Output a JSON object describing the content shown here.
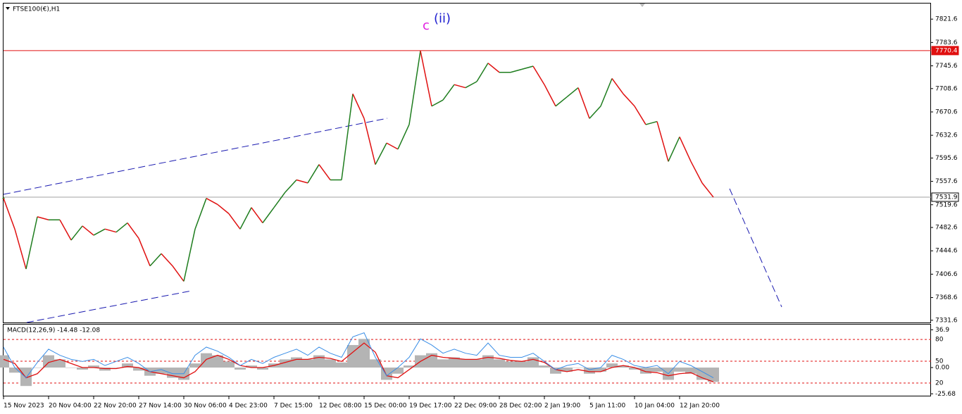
{
  "chart_data": [
    {
      "type": "line",
      "title": "FTSE100(€),H1",
      "categories": [
        "15 Nov 2023",
        null,
        null,
        null,
        "20 Nov 04:00",
        null,
        null,
        null,
        "22 Nov 20:00",
        null,
        null,
        null,
        "27 Nov 14:00",
        null,
        null,
        null,
        "30 Nov 06:00",
        null,
        null,
        null,
        "4 Dec 23:00",
        null,
        null,
        null,
        "7 Dec 15:00",
        null,
        null,
        null,
        "12 Dec 08:00",
        null,
        null,
        null,
        "15 Dec 00:00",
        null,
        null,
        null,
        "19 Dec 17:00",
        null,
        null,
        null,
        "22 Dec 09:00",
        null,
        null,
        null,
        "28 Dec 02:00",
        null,
        null,
        null,
        "2 Jan 19:00",
        null,
        null,
        null,
        "5 Jan 11:00",
        null,
        null,
        null,
        "10 Jan 04:00",
        null,
        null,
        null,
        "12 Jan 20:00",
        null,
        null,
        null
      ],
      "series": [
        {
          "up_color": "#1e7d1e",
          "down_color": "#e01010",
          "values": [
            7530,
            7480,
            7415,
            7500,
            7495,
            7495,
            7462,
            7485,
            7470,
            7480,
            7475,
            7490,
            7465,
            7420,
            7440,
            7420,
            7395,
            7480,
            7530,
            7520,
            7505,
            7480,
            7515,
            7490,
            7515,
            7540,
            7560,
            7555,
            7585,
            7560,
            7560,
            7700,
            7660,
            7585,
            7620,
            7610,
            7650,
            7770,
            7680,
            7690,
            7715,
            7710,
            7720,
            7750,
            7735,
            7735,
            7740,
            7745,
            7715,
            7680,
            7695,
            7710,
            7660,
            7680,
            7725,
            7700,
            7680,
            7650,
            7655,
            7590,
            7630,
            7590,
            7555,
            7531.9
          ]
        }
      ],
      "ylim": [
        7328,
        7847
      ],
      "yticks": [
        7821.6,
        7783.6,
        7745.6,
        7708.6,
        7670.6,
        7632.6,
        7595.6,
        7557.6,
        7519.6,
        7482.6,
        7444.6,
        7406.6,
        7368.6,
        7331.6
      ],
      "levels": [
        {
          "value": 7770.4,
          "color": "#e01010"
        },
        {
          "value": 7531.9,
          "color": "#a0a0a0"
        }
      ],
      "annotations": [
        {
          "text": "c",
          "color": "#e020e0"
        },
        {
          "text": "(ii)",
          "color": "#2020d0"
        }
      ]
    },
    {
      "type": "macd",
      "title": "MACD(12,26,9) -14.48 -12.08",
      "series": [
        {
          "color": "#b4b4b4",
          "values": [
            12,
            -5,
            -18,
            0,
            12,
            8,
            0,
            -2,
            2,
            -3,
            0,
            4,
            -3,
            -8,
            -6,
            -10,
            -12,
            4,
            14,
            12,
            6,
            -2,
            2,
            -2,
            4,
            8,
            10,
            8,
            12,
            8,
            5,
            22,
            28,
            8,
            -12,
            -6,
            2,
            12,
            14,
            8,
            10,
            8,
            8,
            12,
            8,
            6,
            6,
            10,
            2,
            -6,
            -4,
            0,
            -6,
            -4,
            4,
            2,
            -2,
            -6,
            -4,
            -12,
            -4,
            -6,
            -12,
            -14
          ]
        },
        {
          "color": "#e01010",
          "values": [
            8,
            4,
            -10,
            -6,
            5,
            8,
            4,
            0,
            0,
            -1,
            -1,
            1,
            0,
            -4,
            -6,
            -8,
            -10,
            -4,
            8,
            12,
            8,
            2,
            0,
            0,
            2,
            5,
            8,
            8,
            10,
            9,
            6,
            15,
            24,
            15,
            -8,
            -10,
            -2,
            6,
            12,
            10,
            9,
            8,
            8,
            10,
            9,
            7,
            6,
            8,
            5,
            -2,
            -4,
            -2,
            -4,
            -4,
            0,
            2,
            0,
            -4,
            -5,
            -8,
            -6,
            -5,
            -10,
            -14
          ]
        },
        {
          "color": "#3a8ee6",
          "values": [
            20,
            0,
            -10,
            5,
            18,
            12,
            8,
            6,
            8,
            2,
            6,
            10,
            4,
            -4,
            -2,
            -6,
            -6,
            12,
            20,
            16,
            10,
            2,
            8,
            4,
            10,
            14,
            18,
            12,
            20,
            14,
            10,
            30,
            34,
            10,
            -8,
            0,
            10,
            28,
            22,
            14,
            18,
            14,
            12,
            24,
            12,
            10,
            10,
            14,
            6,
            -2,
            2,
            4,
            -2,
            0,
            12,
            8,
            2,
            0,
            2,
            -6,
            6,
            2,
            -4,
            -10
          ]
        }
      ],
      "ylim": [
        -27.5,
        42
      ],
      "yticks": [
        36.9,
        {
          "value": 27.5,
          "label": "80"
        },
        {
          "value": 6.2,
          "label": "50"
        },
        {
          "value": 0,
          "label": "0.00"
        },
        {
          "value": -15.1,
          "label": "20"
        },
        -25.68
      ]
    }
  ]
}
